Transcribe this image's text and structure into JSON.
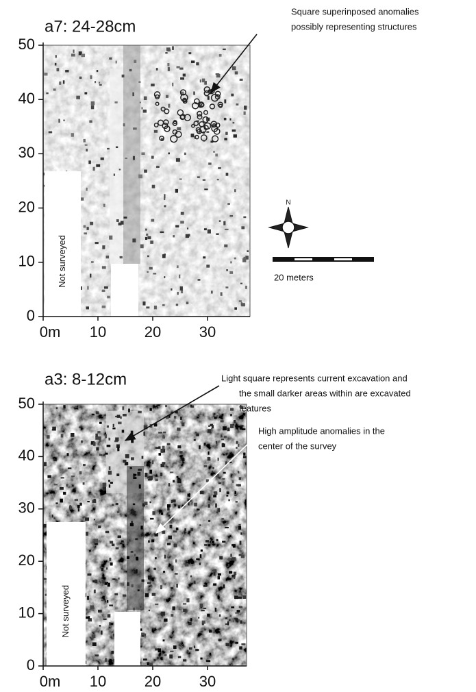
{
  "panels": [
    {
      "title": "a7: 24-28cm",
      "y_ticks": [
        "0",
        "10",
        "20",
        "30",
        "40",
        "50"
      ],
      "x_ticks": [
        "0m",
        "10",
        "20",
        "30"
      ],
      "unsurveyed_label": "Not surveyed",
      "annotations": [
        {
          "lines": [
            "Square superinposed anomalies",
            "possibly representing structures"
          ]
        }
      ]
    },
    {
      "title": "a3: 8-12cm",
      "y_ticks": [
        "0",
        "10",
        "20",
        "30",
        "40",
        "50"
      ],
      "x_ticks": [
        "0m",
        "10",
        "20",
        "30"
      ],
      "unsurveyed_label": "Not surveyed",
      "annotations": [
        {
          "lines": [
            "Light square represents current excavation and",
            "the small darker areas within are excavated",
            "features"
          ]
        },
        {
          "lines": [
            "High amplitude anomalies in the",
            "center of the survey"
          ]
        }
      ]
    }
  ],
  "compass": {
    "label": "N"
  },
  "scale": {
    "label": "20 meters"
  }
}
